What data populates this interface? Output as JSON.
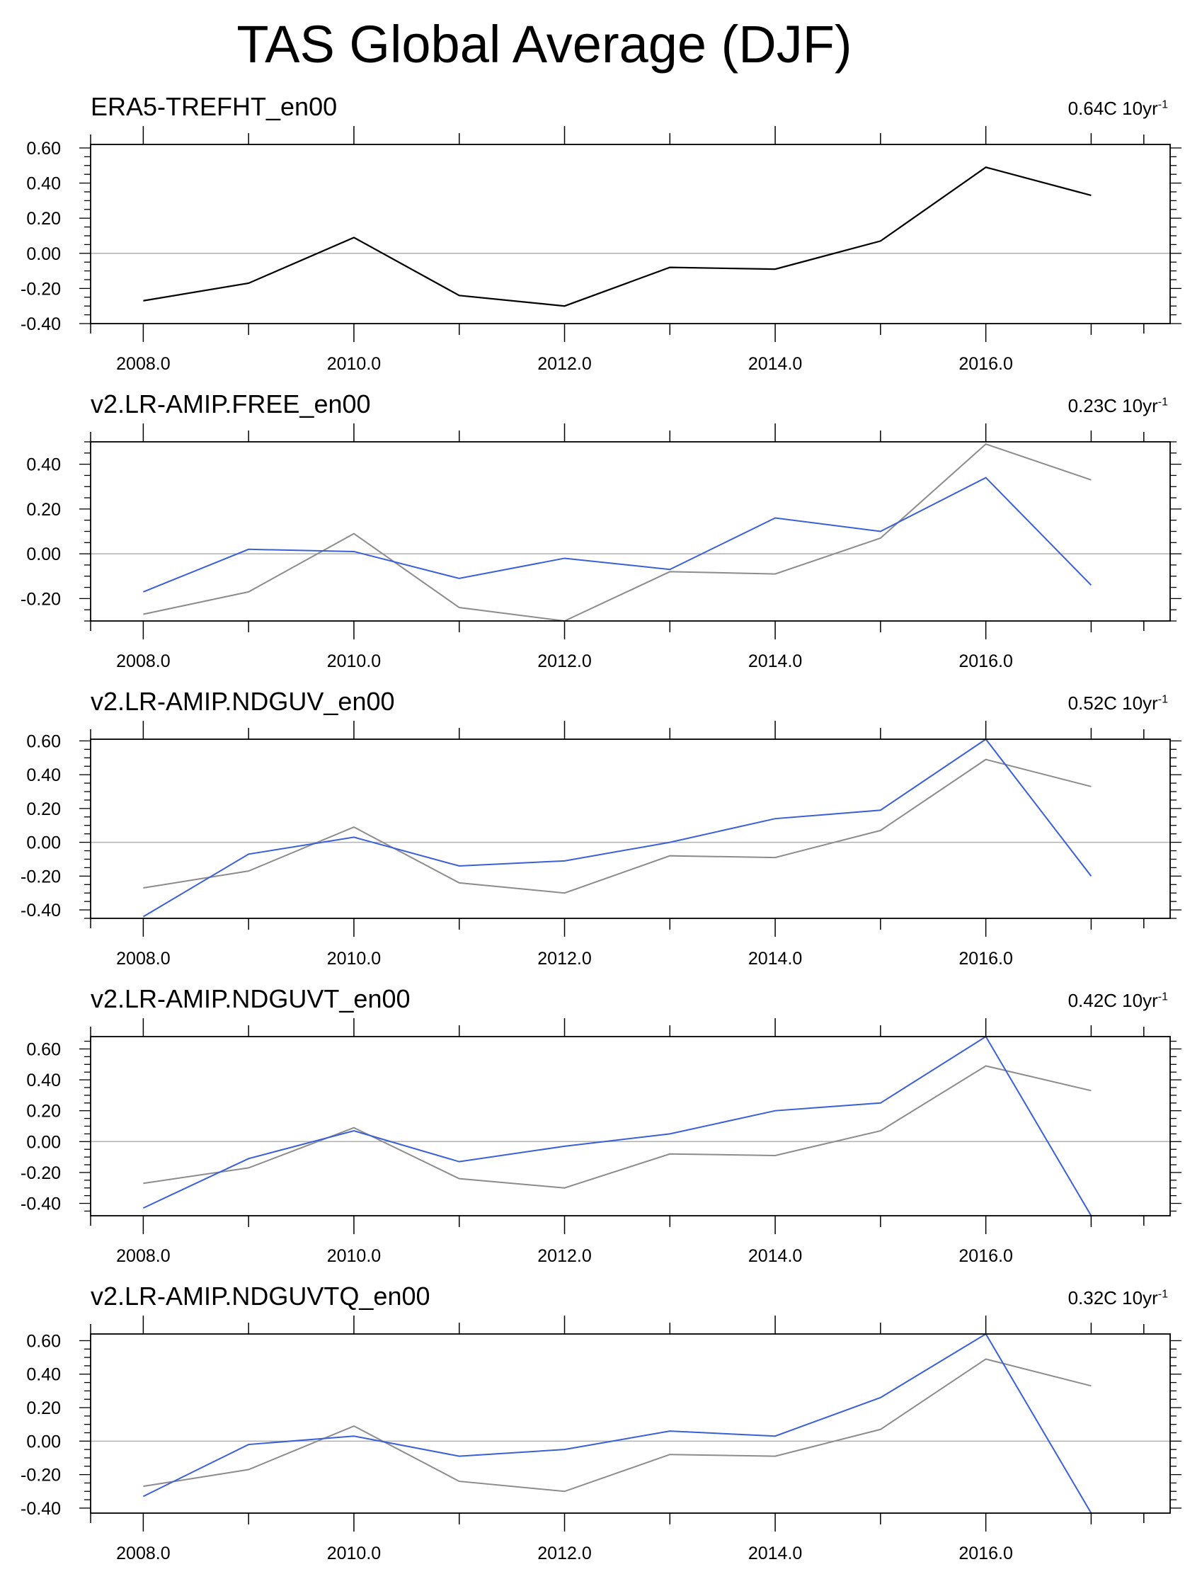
{
  "title": "TAS Global Average (DJF)",
  "colors": {
    "reference": "#000000",
    "reference_overlay": "#8c8c8c",
    "model": "#3a5fd9",
    "zero_line": "#b0b0b0",
    "frame": "#000000"
  },
  "chart_data": [
    {
      "type": "line",
      "title": "ERA5-TREFHT_en00",
      "trend_value": "0.64C 10yr",
      "trend_exp": "-1",
      "x": [
        2008,
        2009,
        2010,
        2011,
        2012,
        2013,
        2014,
        2015,
        2016,
        2017
      ],
      "xlim": [
        2007.5,
        2017.75
      ],
      "xticks": [
        "2008.0",
        "2010.0",
        "2012.0",
        "2014.0",
        "2016.0"
      ],
      "ylim": [
        -0.4,
        0.62
      ],
      "yticks": [
        "0.60",
        "0.40",
        "0.20",
        "0.00",
        "-0.20",
        "-0.40"
      ],
      "series": [
        {
          "name": "ERA5",
          "role": "reference",
          "values": [
            -0.27,
            -0.17,
            0.09,
            -0.24,
            -0.3,
            -0.08,
            -0.09,
            0.07,
            0.49,
            0.33
          ]
        }
      ]
    },
    {
      "type": "line",
      "title": "v2.LR-AMIP.FREE_en00",
      "trend_value": "0.23C 10yr",
      "trend_exp": "-1",
      "x": [
        2008,
        2009,
        2010,
        2011,
        2012,
        2013,
        2014,
        2015,
        2016,
        2017
      ],
      "xlim": [
        2007.5,
        2017.75
      ],
      "xticks": [
        "2008.0",
        "2010.0",
        "2012.0",
        "2014.0",
        "2016.0"
      ],
      "ylim": [
        -0.3,
        0.5
      ],
      "yticks": [
        "0.40",
        "0.20",
        "0.00",
        "-0.20"
      ],
      "series": [
        {
          "name": "v2.LR-AMIP.FREE_en00",
          "role": "model",
          "values": [
            -0.17,
            0.02,
            0.01,
            -0.11,
            -0.02,
            -0.07,
            0.16,
            0.1,
            0.34,
            -0.14
          ]
        },
        {
          "name": "ERA5",
          "role": "reference_overlay",
          "values": [
            -0.27,
            -0.17,
            0.09,
            -0.24,
            -0.3,
            -0.08,
            -0.09,
            0.07,
            0.49,
            0.33
          ]
        }
      ]
    },
    {
      "type": "line",
      "title": "v2.LR-AMIP.NDGUV_en00",
      "trend_value": "0.52C 10yr",
      "trend_exp": "-1",
      "x": [
        2008,
        2009,
        2010,
        2011,
        2012,
        2013,
        2014,
        2015,
        2016,
        2017
      ],
      "xlim": [
        2007.5,
        2017.75
      ],
      "xticks": [
        "2008.0",
        "2010.0",
        "2012.0",
        "2014.0",
        "2016.0"
      ],
      "ylim": [
        -0.45,
        0.61
      ],
      "yticks": [
        "0.60",
        "0.40",
        "0.20",
        "0.00",
        "-0.20",
        "-0.40"
      ],
      "series": [
        {
          "name": "v2.LR-AMIP.NDGUV_en00",
          "role": "model",
          "values": [
            -0.44,
            -0.07,
            0.03,
            -0.14,
            -0.11,
            0.0,
            0.14,
            0.19,
            0.61,
            -0.2
          ]
        },
        {
          "name": "ERA5",
          "role": "reference_overlay",
          "values": [
            -0.27,
            -0.17,
            0.09,
            -0.24,
            -0.3,
            -0.08,
            -0.09,
            0.07,
            0.49,
            0.33
          ]
        }
      ]
    },
    {
      "type": "line",
      "title": "v2.LR-AMIP.NDGUVT_en00",
      "trend_value": "0.42C 10yr",
      "trend_exp": "-1",
      "x": [
        2008,
        2009,
        2010,
        2011,
        2012,
        2013,
        2014,
        2015,
        2016,
        2017
      ],
      "xlim": [
        2007.5,
        2017.75
      ],
      "xticks": [
        "2008.0",
        "2010.0",
        "2012.0",
        "2014.0",
        "2016.0"
      ],
      "ylim": [
        -0.48,
        0.68
      ],
      "yticks": [
        "0.60",
        "0.40",
        "0.20",
        "0.00",
        "-0.20",
        "-0.40"
      ],
      "series": [
        {
          "name": "v2.LR-AMIP.NDGUVT_en00",
          "role": "model",
          "values": [
            -0.43,
            -0.11,
            0.07,
            -0.13,
            -0.03,
            0.05,
            0.2,
            0.25,
            0.68,
            -0.48
          ]
        },
        {
          "name": "ERA5",
          "role": "reference_overlay",
          "values": [
            -0.27,
            -0.17,
            0.09,
            -0.24,
            -0.3,
            -0.08,
            -0.09,
            0.07,
            0.49,
            0.33
          ]
        }
      ]
    },
    {
      "type": "line",
      "title": "v2.LR-AMIP.NDGUVTQ_en00",
      "trend_value": "0.32C 10yr",
      "trend_exp": "-1",
      "x": [
        2008,
        2009,
        2010,
        2011,
        2012,
        2013,
        2014,
        2015,
        2016,
        2017
      ],
      "xlim": [
        2007.5,
        2017.75
      ],
      "xticks": [
        "2008.0",
        "2010.0",
        "2012.0",
        "2014.0",
        "2016.0"
      ],
      "ylim": [
        -0.43,
        0.64
      ],
      "yticks": [
        "0.60",
        "0.40",
        "0.20",
        "0.00",
        "-0.20",
        "-0.40"
      ],
      "series": [
        {
          "name": "v2.LR-AMIP.NDGUVTQ_en00",
          "role": "model",
          "values": [
            -0.33,
            -0.02,
            0.03,
            -0.09,
            -0.05,
            0.06,
            0.03,
            0.26,
            0.64,
            -0.43
          ]
        },
        {
          "name": "ERA5",
          "role": "reference_overlay",
          "values": [
            -0.27,
            -0.17,
            0.09,
            -0.24,
            -0.3,
            -0.08,
            -0.09,
            0.07,
            0.49,
            0.33
          ]
        }
      ]
    }
  ]
}
